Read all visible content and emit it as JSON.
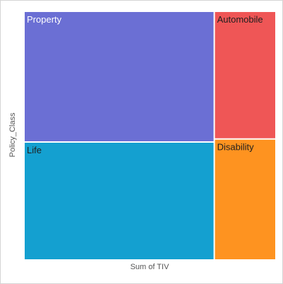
{
  "chart_data": {
    "type": "treemap",
    "xlabel": "Sum of TIV",
    "ylabel": "Policy_Class",
    "nodes": [
      {
        "label": "Property",
        "value": 61,
        "color": "#6b6fd4",
        "label_color": "#ffffff"
      },
      {
        "label": "Life",
        "value": 55,
        "color": "#14a0d0",
        "label_color": "#1f1f1f"
      },
      {
        "label": "Automobile",
        "value": 19,
        "color": "#ef5656",
        "label_color": "#1f1f1f"
      },
      {
        "label": "Disability",
        "value": 18,
        "color": "#fe9320",
        "label_color": "#1f1f1f"
      }
    ]
  }
}
